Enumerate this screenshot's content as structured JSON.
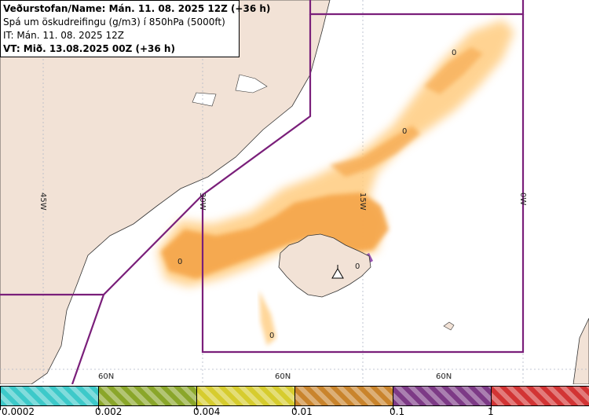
{
  "info": {
    "line1": "Veðurstofan/Name: Mán. 11. 08. 2025 12Z (+36 h)",
    "line2": "Spá um öskudreifingu (g/m3) í 850hPa (5000ft)",
    "line3": "IT: Mán. 11. 08. 2025 12Z",
    "line4": "VT: Mið. 13.08.2025 00Z (+36 h)"
  },
  "map": {
    "meridian_labels": [
      "45W",
      "30W",
      "15W",
      "0W"
    ],
    "parallel_labels": [
      "60N",
      "60N",
      "60N"
    ],
    "contour_labels": [
      "0",
      "0",
      "0",
      "0",
      "0"
    ],
    "colors": {
      "land": "#f2e2d6",
      "sea": "#ffffff",
      "ash_light": "#ffcc80",
      "ash": "#f5a54a",
      "ash_dark": "#d9892f",
      "ash_high": "#8e44ad",
      "boundary": "#7a1f7a",
      "graticule": "#b0b8c8"
    }
  },
  "legend": {
    "bins": [
      {
        "from": "0.0002",
        "color": "#3dc9c9"
      },
      {
        "from": "0.002",
        "color": "#8aa62a"
      },
      {
        "from": "0.004",
        "color": "#d6cc2e"
      },
      {
        "from": "0.01",
        "color": "#c9842c"
      },
      {
        "from": "0.1",
        "color": "#7d3a86"
      },
      {
        "from": "1",
        "color": "#d23434"
      }
    ]
  }
}
